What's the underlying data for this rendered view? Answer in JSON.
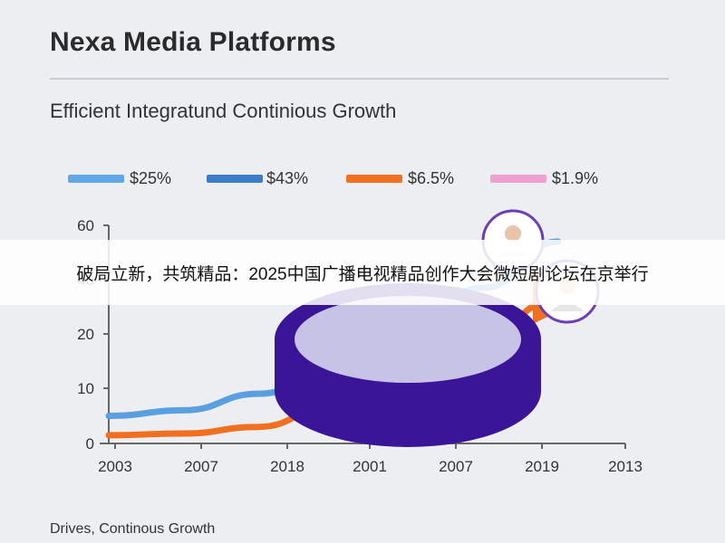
{
  "page": {
    "title": "Nexa Media Platforms",
    "subtitle": "Efficient Integratund Continious Growth",
    "footer": "Drives, Continous Growth",
    "banner": "破局立新，共筑精品：2025中国广播电视精品创作大会微短剧论坛在京举行"
  },
  "chart_data": {
    "type": "line",
    "title": "Nexa Media Platforms",
    "subtitle": "Efficient Integratund Continious Growth",
    "xlabel": "",
    "ylabel": "",
    "categories": [
      "2003",
      "2007",
      "2018",
      "2001",
      "2007",
      "2019",
      "2013"
    ],
    "y_ticks": [
      "0",
      "10",
      "20",
      "40",
      "60"
    ],
    "ylim": [
      0,
      60
    ],
    "grid": false,
    "legend_position": "top",
    "legend": [
      {
        "label": "$25%",
        "color": "#5fa8e8"
      },
      {
        "label": "$43%",
        "color": "#3a7cc8"
      },
      {
        "label": "$6.5%",
        "color": "#f07020"
      },
      {
        "label": "$1.9%",
        "color": "#f0a0d0"
      }
    ],
    "series": [
      {
        "color": "#5a9fe0",
        "values": [
          5,
          6,
          9,
          13,
          22,
          37,
          54
        ]
      },
      {
        "color": "#f07020",
        "values": [
          1.5,
          1.8,
          3,
          7,
          12,
          20,
          33
        ]
      }
    ],
    "colors": {
      "axis": "#666666",
      "disk_fill": "#3a1597",
      "disk_top": "#c7c3e6",
      "badge_ring": "#6b3fb5"
    }
  }
}
